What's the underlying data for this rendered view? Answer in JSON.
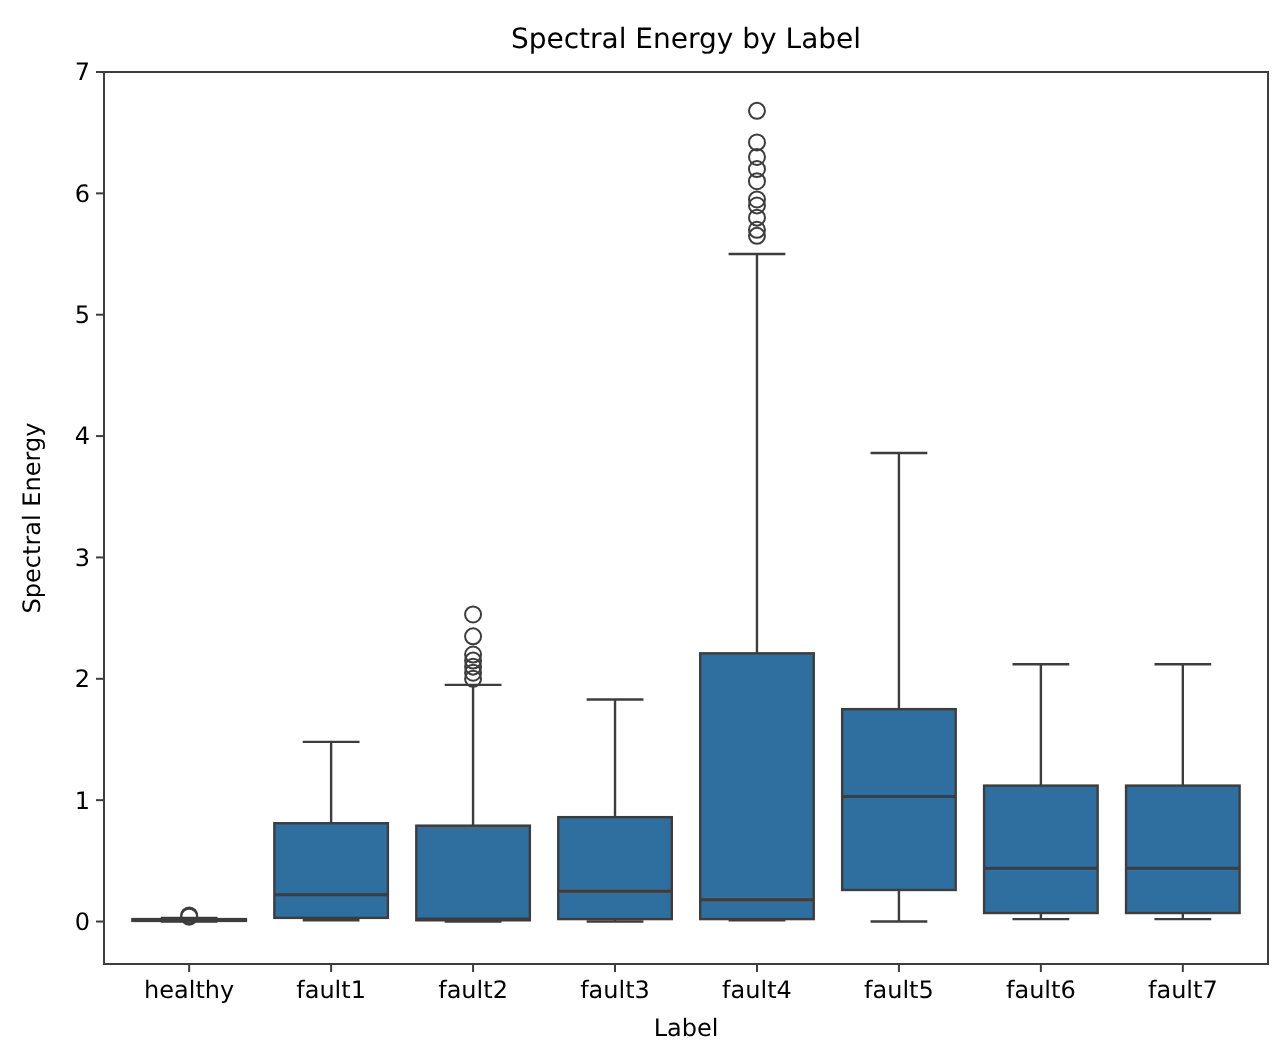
{
  "chart_data": {
    "type": "box",
    "title": "Spectral Energy by Label",
    "xlabel": "Label",
    "ylabel": "Spectral Energy",
    "categories": [
      "healthy",
      "fault1",
      "fault2",
      "fault3",
      "fault4",
      "fault5",
      "fault6",
      "fault7"
    ],
    "color": "#2f6fa0",
    "boxes": [
      {
        "low": 0,
        "q1": 0.005,
        "median": 0.01,
        "q3": 0.02,
        "high": 0.03,
        "outliers": [
          0.04,
          0.05
        ]
      },
      {
        "low": 0.01,
        "q1": 0.03,
        "median": 0.22,
        "q3": 0.81,
        "high": 1.48
      },
      {
        "low": 0,
        "q1": 0.01,
        "median": 0.02,
        "q3": 0.79,
        "high": 1.95,
        "outliers": [
          2.0,
          2.05,
          2.1,
          2.15,
          2.2,
          2.35,
          2.53
        ]
      },
      {
        "low": 0,
        "q1": 0.02,
        "median": 0.25,
        "q3": 0.86,
        "high": 1.83
      },
      {
        "low": 0.01,
        "q1": 0.02,
        "median": 0.18,
        "q3": 2.21,
        "high": 5.5,
        "outliers": [
          5.65,
          5.7,
          5.8,
          5.9,
          5.95,
          6.1,
          6.2,
          6.3,
          6.42,
          6.68
        ]
      },
      {
        "low": 0,
        "q1": 0.26,
        "median": 1.03,
        "q3": 1.75,
        "high": 3.86
      },
      {
        "low": 0.02,
        "q1": 0.07,
        "median": 0.44,
        "q3": 1.12,
        "high": 2.12
      },
      {
        "low": 0.02,
        "q1": 0.07,
        "median": 0.44,
        "q3": 1.12,
        "high": 2.12
      }
    ],
    "ylim": [
      -0.35,
      7
    ],
    "yticks": [
      0,
      1,
      2,
      3,
      4,
      5,
      6,
      7
    ],
    "grid": false
  }
}
